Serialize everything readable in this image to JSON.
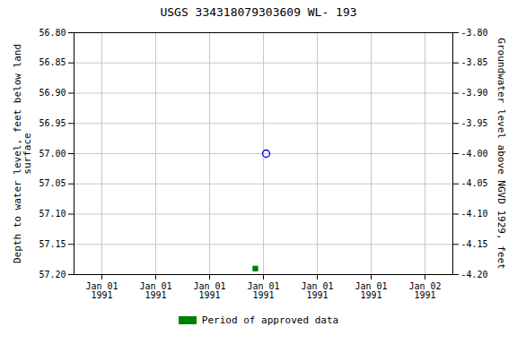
{
  "chart_data": {
    "type": "scatter",
    "title": "USGS 334318079303609 WL- 193",
    "ylabel": "Depth to water level, feet below land\nsurface",
    "y2label": "Groundwater level above NGVD 1929, feet",
    "categories": [
      "Jan 01\n1991",
      "Jan 01\n1991",
      "Jan 01\n1991",
      "Jan 01\n1991",
      "Jan 01\n1991",
      "Jan 01\n1991",
      "Jan 02\n1991"
    ],
    "series": [
      {
        "values": [
          null,
          null,
          null,
          57.0,
          null,
          null,
          null
        ],
        "color": "#0000cc",
        "marker": "open_circle"
      },
      {
        "name": "Period of approved data",
        "values": [
          null,
          null,
          null,
          57.19,
          null,
          null,
          null
        ],
        "color": "#008000",
        "marker": "square"
      }
    ],
    "ylim": [
      57.2,
      56.8
    ],
    "yticks": [
      {
        "value": 56.8,
        "label": "56.80"
      },
      56.85,
      {
        "value": 56.9,
        "label": "56.90"
      },
      56.95,
      {
        "value": 57.0,
        "label": "57.00"
      },
      57.05,
      {
        "value": 57.1,
        "label": "57.10"
      },
      57.15,
      {
        "value": 57.2,
        "label": "57.20"
      }
    ],
    "y2lim": [
      -4.2,
      -3.8
    ],
    "y2ticks": [
      {
        "value": -3.8,
        "label": "-3.80"
      },
      -3.85,
      {
        "value": -3.9,
        "label": "-3.90"
      },
      -3.95,
      {
        "value": -4.0,
        "label": "-4.00"
      },
      -4.05,
      {
        "value": -4.1,
        "label": "-4.10"
      },
      -4.15,
      {
        "value": -4.2,
        "label": "-4.20"
      }
    ],
    "grid": true,
    "legend": "bottom"
  }
}
